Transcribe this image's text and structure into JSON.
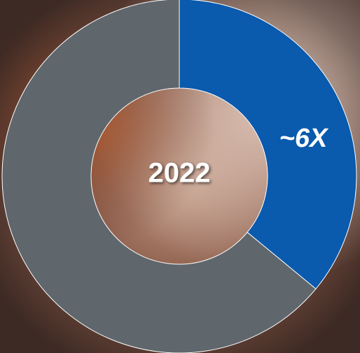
{
  "chart_data": {
    "type": "donut",
    "title": "2022",
    "annotation": "~6X",
    "values": [
      36,
      64
    ],
    "colors": [
      "#0a5aad",
      "#5f666c"
    ]
  }
}
